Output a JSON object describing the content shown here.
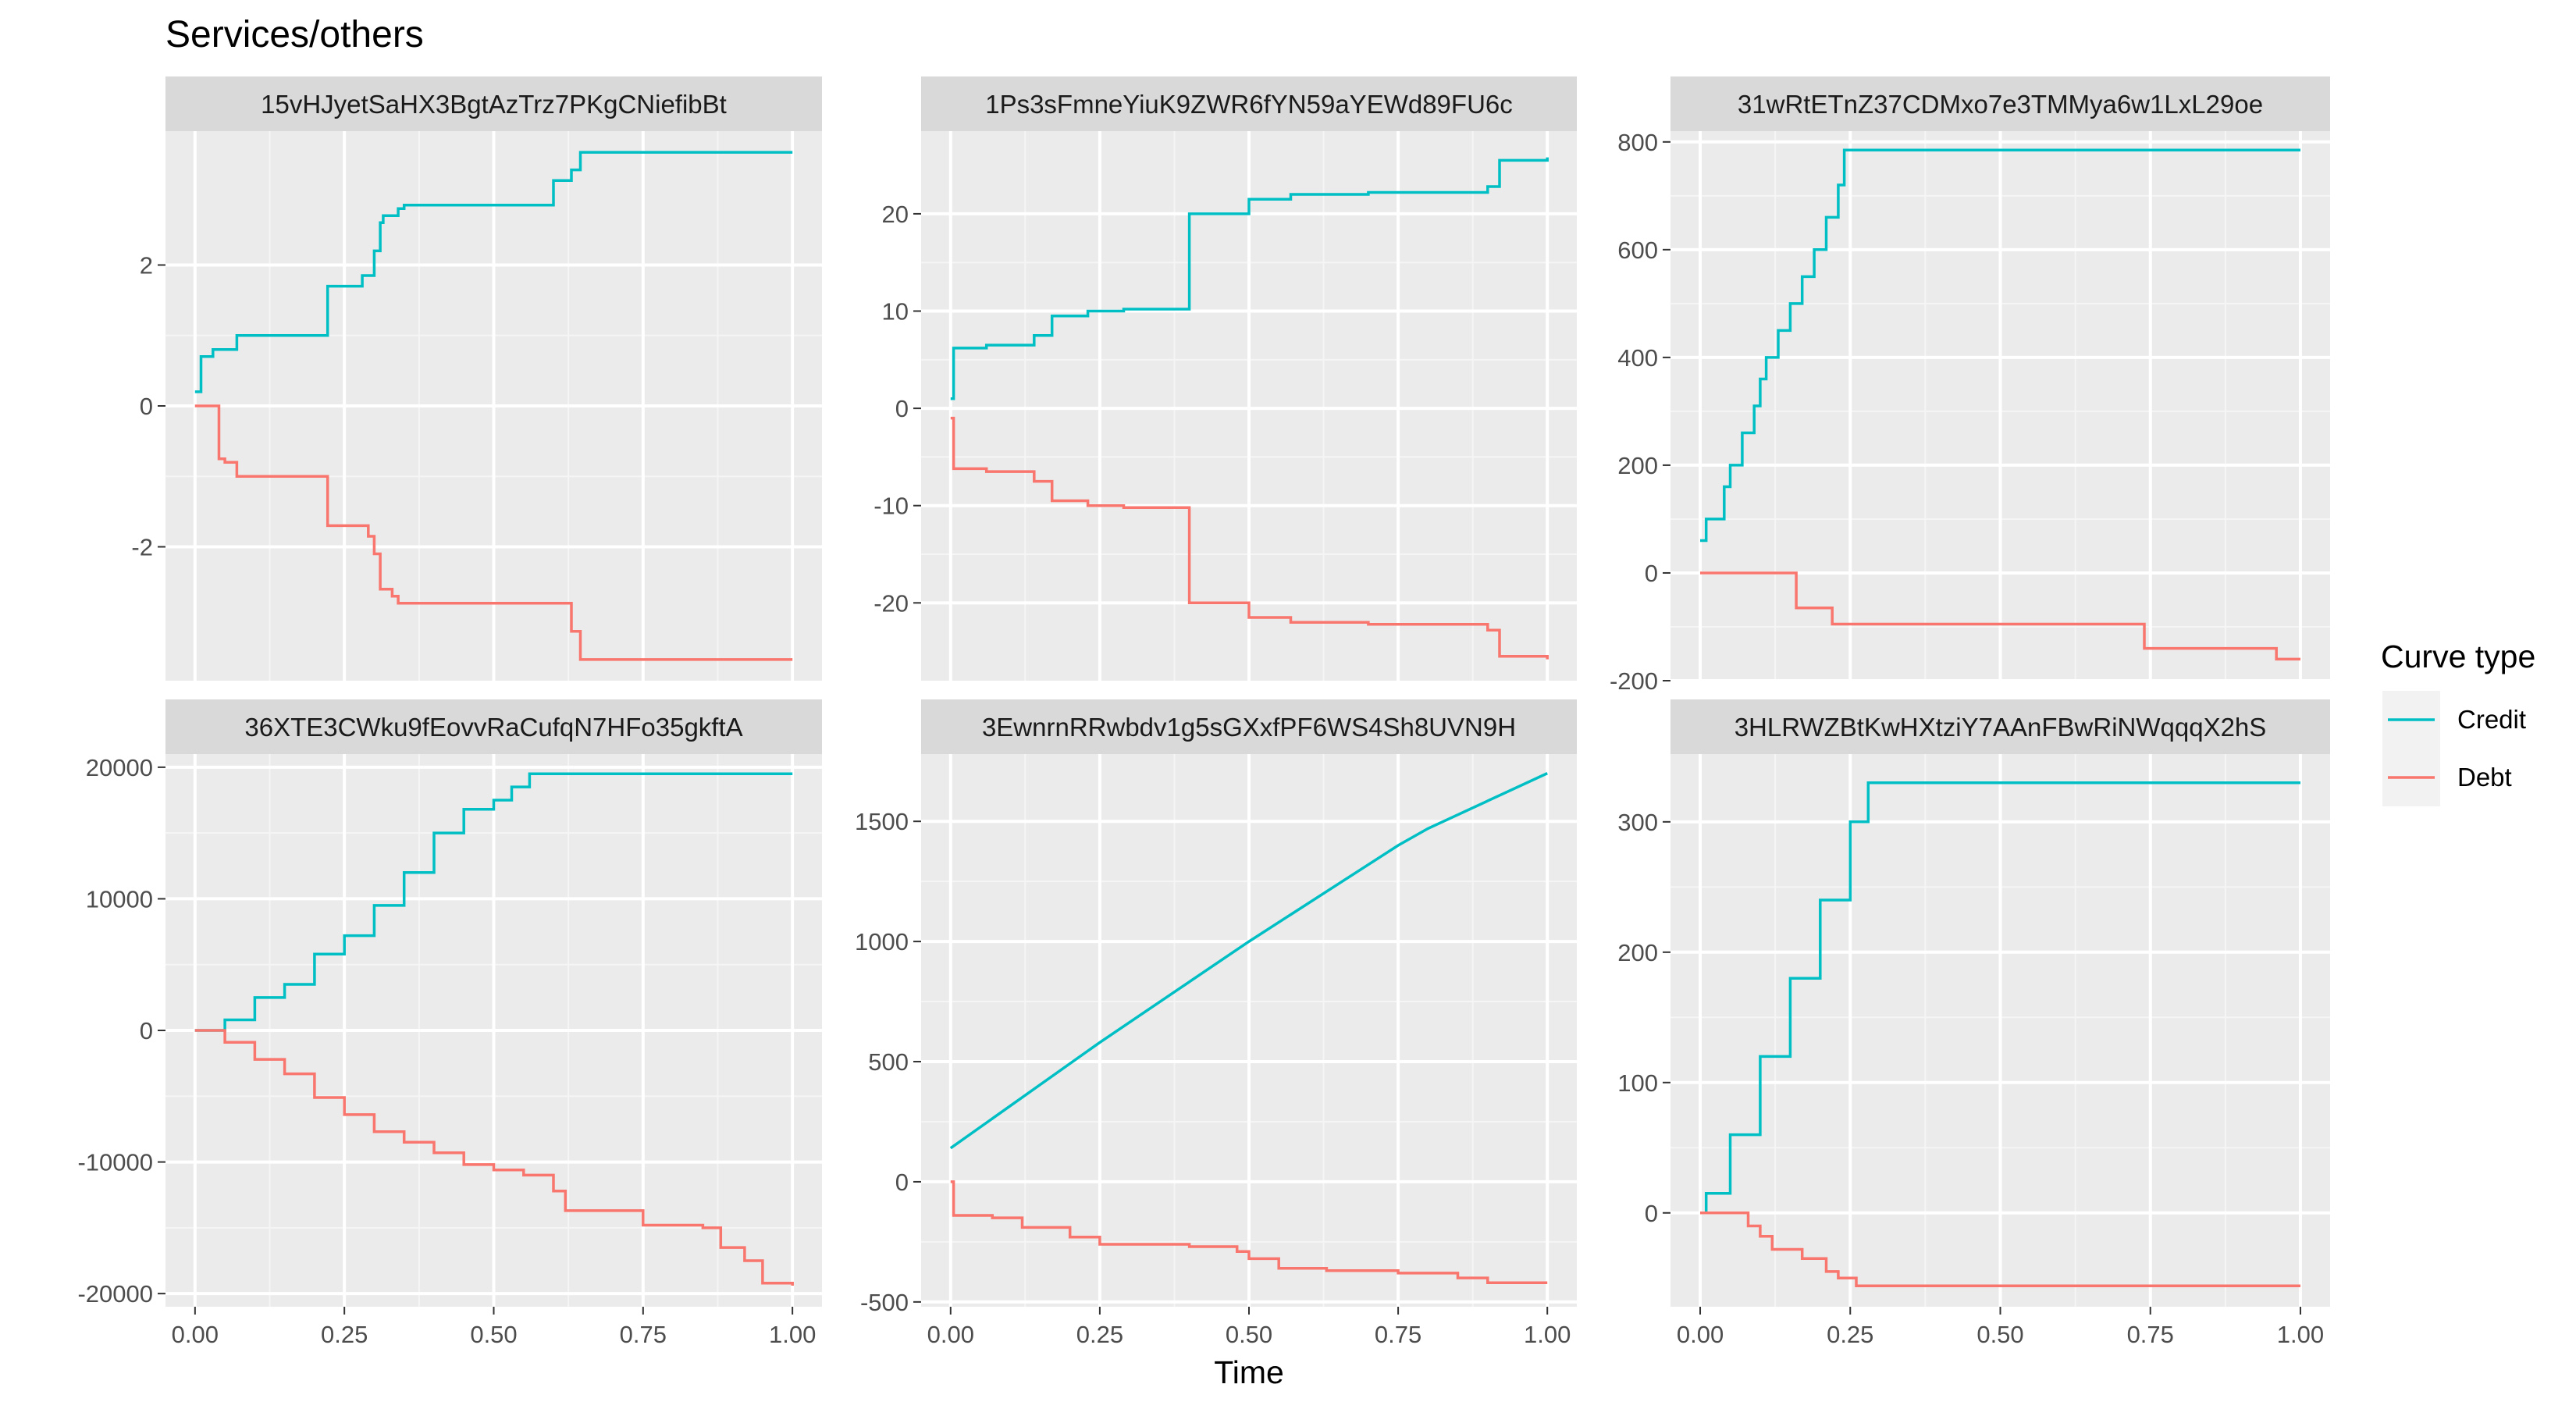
{
  "title": "Services/others",
  "xlabel": "Time",
  "legend": {
    "title": "Curve type",
    "entries": [
      {
        "name": "Credit",
        "color": "#00BFC4"
      },
      {
        "name": "Debt",
        "color": "#F8766D"
      }
    ]
  },
  "chart_data": [
    {
      "type": "line",
      "panel": "15vHJyetSaHX3BgtAzTrz7PKgCNiefibBt",
      "xlim": [
        0,
        1
      ],
      "ylim": [
        -3.9,
        3.9
      ],
      "xticks": [
        0,
        0.25,
        0.5,
        0.75,
        1.0
      ],
      "xtick_labels": [
        "0.00",
        "0.25",
        "0.50",
        "0.75",
        "1.00"
      ],
      "yticks": [
        -2,
        0,
        2
      ],
      "ytick_labels": [
        "-2",
        "0",
        "2"
      ],
      "series": [
        {
          "name": "Credit",
          "step": true,
          "x": [
            0,
            0.01,
            0.03,
            0.07,
            0.22,
            0.222,
            0.28,
            0.3,
            0.31,
            0.315,
            0.34,
            0.35,
            0.6,
            0.63,
            0.645,
            1.0
          ],
          "y": [
            0.2,
            0.7,
            0.8,
            1.0,
            1.0,
            1.7,
            1.85,
            2.2,
            2.6,
            2.7,
            2.8,
            2.85,
            3.2,
            3.35,
            3.6,
            3.6
          ]
        },
        {
          "name": "Debt",
          "step": true,
          "x": [
            0,
            0.04,
            0.05,
            0.07,
            0.22,
            0.222,
            0.29,
            0.3,
            0.31,
            0.33,
            0.34,
            0.6,
            0.63,
            0.645,
            1.0
          ],
          "y": [
            0,
            -0.75,
            -0.8,
            -1.0,
            -1.0,
            -1.7,
            -1.85,
            -2.1,
            -2.6,
            -2.7,
            -2.8,
            -2.8,
            -3.2,
            -3.6,
            -3.6
          ]
        }
      ]
    },
    {
      "type": "line",
      "panel": "1Ps3sFmneYiuK9ZWR6fYN59aYEWd89FU6c",
      "xlim": [
        0,
        1
      ],
      "ylim": [
        -28,
        28.5
      ],
      "xticks": [
        0,
        0.25,
        0.5,
        0.75,
        1.0
      ],
      "xtick_labels": [
        "0.00",
        "0.25",
        "0.50",
        "0.75",
        "1.00"
      ],
      "yticks": [
        -20,
        -10,
        0,
        10,
        20
      ],
      "ytick_labels": [
        "-20",
        "-10",
        "0",
        "10",
        "20"
      ],
      "series": [
        {
          "name": "Credit",
          "step": true,
          "x": [
            0,
            0.005,
            0.06,
            0.14,
            0.17,
            0.23,
            0.29,
            0.4,
            0.5,
            0.57,
            0.7,
            0.9,
            0.92,
            1.0
          ],
          "y": [
            1,
            6.2,
            6.5,
            7.5,
            9.5,
            10.0,
            10.2,
            20.0,
            21.5,
            22.0,
            22.2,
            22.8,
            25.5,
            25.8
          ]
        },
        {
          "name": "Debt",
          "step": true,
          "x": [
            0,
            0.005,
            0.06,
            0.14,
            0.17,
            0.23,
            0.29,
            0.4,
            0.5,
            0.57,
            0.7,
            0.9,
            0.92,
            1.0
          ],
          "y": [
            -1,
            -6.2,
            -6.5,
            -7.5,
            -9.5,
            -10.0,
            -10.2,
            -20.0,
            -21.5,
            -22.0,
            -22.2,
            -22.8,
            -25.5,
            -25.8
          ]
        }
      ]
    },
    {
      "type": "line",
      "panel": "31wRtETnZ37CDMxo7e3TMMya6w1LxL29oe",
      "xlim": [
        0,
        1
      ],
      "ylim": [
        -200,
        820
      ],
      "xticks": [
        0,
        0.25,
        0.5,
        0.75,
        1.0
      ],
      "xtick_labels": [
        "0.00",
        "0.25",
        "0.50",
        "0.75",
        "1.00"
      ],
      "yticks": [
        -200,
        0,
        200,
        400,
        600,
        800
      ],
      "ytick_labels": [
        "-200",
        "0",
        "200",
        "400",
        "600",
        "800"
      ],
      "series": [
        {
          "name": "Credit",
          "step": true,
          "x": [
            0,
            0.01,
            0.04,
            0.05,
            0.07,
            0.09,
            0.1,
            0.11,
            0.13,
            0.15,
            0.17,
            0.19,
            0.21,
            0.23,
            0.24,
            1.0
          ],
          "y": [
            60,
            100,
            160,
            200,
            260,
            310,
            360,
            400,
            450,
            500,
            550,
            600,
            660,
            720,
            785,
            785
          ]
        },
        {
          "name": "Debt",
          "step": true,
          "x": [
            0,
            0.16,
            0.22,
            0.74,
            0.96,
            1.0
          ],
          "y": [
            0,
            -65,
            -95,
            -140,
            -160,
            -160
          ]
        }
      ]
    },
    {
      "type": "line",
      "panel": "36XTE3CWku9fEovvRaCufqN7HFo35gkftA",
      "xlim": [
        0,
        1
      ],
      "ylim": [
        -21000,
        21000
      ],
      "xticks": [
        0,
        0.25,
        0.5,
        0.75,
        1.0
      ],
      "xtick_labels": [
        "0.00",
        "0.25",
        "0.50",
        "0.75",
        "1.00"
      ],
      "yticks": [
        -20000,
        -10000,
        0,
        10000,
        20000
      ],
      "ytick_labels": [
        "-20000",
        "-10000",
        "0",
        "10000",
        "20000"
      ],
      "series": [
        {
          "name": "Credit",
          "step": true,
          "x": [
            0,
            0.05,
            0.1,
            0.15,
            0.2,
            0.25,
            0.3,
            0.35,
            0.4,
            0.45,
            0.5,
            0.53,
            0.56,
            1.0
          ],
          "y": [
            0,
            800,
            2500,
            3500,
            5800,
            7200,
            9500,
            12000,
            15000,
            16800,
            17500,
            18500,
            19500,
            19500
          ]
        },
        {
          "name": "Debt",
          "step": true,
          "x": [
            0,
            0.05,
            0.1,
            0.15,
            0.2,
            0.25,
            0.3,
            0.35,
            0.4,
            0.45,
            0.5,
            0.55,
            0.6,
            0.62,
            0.75,
            0.85,
            0.88,
            0.92,
            0.95,
            1.0
          ],
          "y": [
            0,
            -900,
            -2200,
            -3300,
            -5100,
            -6400,
            -7700,
            -8500,
            -9300,
            -10200,
            -10600,
            -11000,
            -12200,
            -13700,
            -14800,
            -15000,
            -16500,
            -17500,
            -19200,
            -19400
          ]
        }
      ]
    },
    {
      "type": "line",
      "panel": "3EwnrnRRwbdv1g5sGXxfPF6WS4Sh8UVN9H",
      "xlim": [
        0,
        1
      ],
      "ylim": [
        -520,
        1780
      ],
      "xticks": [
        0,
        0.25,
        0.5,
        0.75,
        1.0
      ],
      "xtick_labels": [
        "0.00",
        "0.25",
        "0.50",
        "0.75",
        "1.00"
      ],
      "yticks": [
        -500,
        0,
        500,
        1000,
        1500
      ],
      "ytick_labels": [
        "-500",
        "0",
        "500",
        "1000",
        "1500"
      ],
      "series": [
        {
          "name": "Credit",
          "step": false,
          "x": [
            0,
            0.25,
            0.5,
            0.75,
            0.8,
            1.0
          ],
          "y": [
            140,
            580,
            1000,
            1400,
            1470,
            1700
          ]
        },
        {
          "name": "Debt",
          "step": true,
          "x": [
            0,
            0.005,
            0.07,
            0.12,
            0.2,
            0.25,
            0.4,
            0.48,
            0.5,
            0.55,
            0.63,
            0.75,
            0.85,
            0.9,
            1.0
          ],
          "y": [
            0,
            -140,
            -150,
            -190,
            -230,
            -260,
            -270,
            -290,
            -320,
            -360,
            -370,
            -380,
            -400,
            -420,
            -420
          ]
        }
      ]
    },
    {
      "type": "line",
      "panel": "3HLRWZBtKwHXtziY7AAnFBwRiNWqqqX2hS",
      "xlim": [
        0,
        1
      ],
      "ylim": [
        -72,
        352
      ],
      "xticks": [
        0,
        0.25,
        0.5,
        0.75,
        1.0
      ],
      "xtick_labels": [
        "0.00",
        "0.25",
        "0.50",
        "0.75",
        "1.00"
      ],
      "yticks": [
        0,
        100,
        200,
        300
      ],
      "ytick_labels": [
        "0",
        "100",
        "200",
        "300"
      ],
      "series": [
        {
          "name": "Credit",
          "step": true,
          "x": [
            0,
            0.01,
            0.05,
            0.1,
            0.15,
            0.2,
            0.25,
            0.28,
            1.0
          ],
          "y": [
            0,
            15,
            60,
            120,
            180,
            240,
            300,
            330,
            330
          ]
        },
        {
          "name": "Debt",
          "step": true,
          "x": [
            0,
            0.08,
            0.1,
            0.12,
            0.17,
            0.21,
            0.23,
            0.26,
            1.0
          ],
          "y": [
            0,
            -10,
            -18,
            -28,
            -35,
            -45,
            -50,
            -56,
            -56
          ]
        }
      ]
    }
  ]
}
